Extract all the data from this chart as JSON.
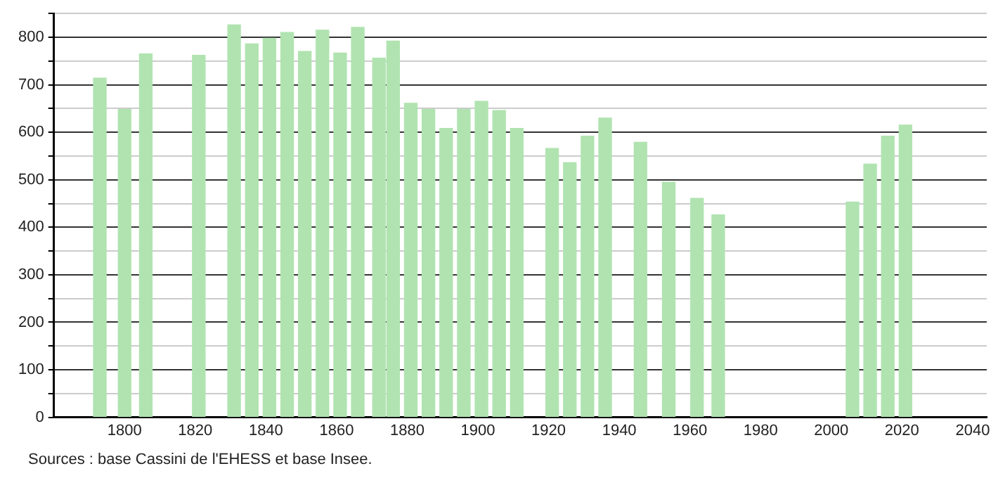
{
  "chart_data": {
    "type": "bar",
    "x": [
      1793,
      1800,
      1806,
      1821,
      1831,
      1836,
      1841,
      1846,
      1851,
      1856,
      1861,
      1866,
      1872,
      1876,
      1881,
      1886,
      1891,
      1896,
      1901,
      1906,
      1911,
      1921,
      1926,
      1931,
      1936,
      1946,
      1954,
      1962,
      1968,
      2006,
      2011,
      2016,
      2021
    ],
    "values": [
      714,
      648,
      765,
      762,
      826,
      786,
      798,
      810,
      770,
      815,
      767,
      821,
      756,
      792,
      661,
      648,
      608,
      648,
      665,
      646,
      608,
      566,
      536,
      592,
      630,
      579,
      495,
      461,
      426,
      453,
      533,
      592,
      615
    ],
    "color": "#b0e3b0",
    "xlim": [
      1780,
      2044
    ],
    "xticks": [
      1800,
      1820,
      1840,
      1860,
      1880,
      1900,
      1920,
      1940,
      1960,
      1980,
      2000,
      2020,
      2040
    ],
    "ylim": [
      0,
      850
    ],
    "yticks": [
      0,
      {
        "value": 50,
        "label": null
      },
      100,
      {
        "value": 150,
        "label": null
      },
      200,
      {
        "value": 250,
        "label": null
      },
      300,
      {
        "value": 350,
        "label": null
      },
      400,
      {
        "value": 450,
        "label": null
      },
      500,
      {
        "value": 550,
        "label": null
      },
      600,
      {
        "value": 650,
        "label": null
      },
      700,
      {
        "value": 750,
        "label": null
      },
      800,
      {
        "value": 850,
        "label": null
      }
    ],
    "grid": "y",
    "legend": false,
    "annotations": [
      "Sources : base Cassini de l'EHESS et base Insee."
    ]
  }
}
